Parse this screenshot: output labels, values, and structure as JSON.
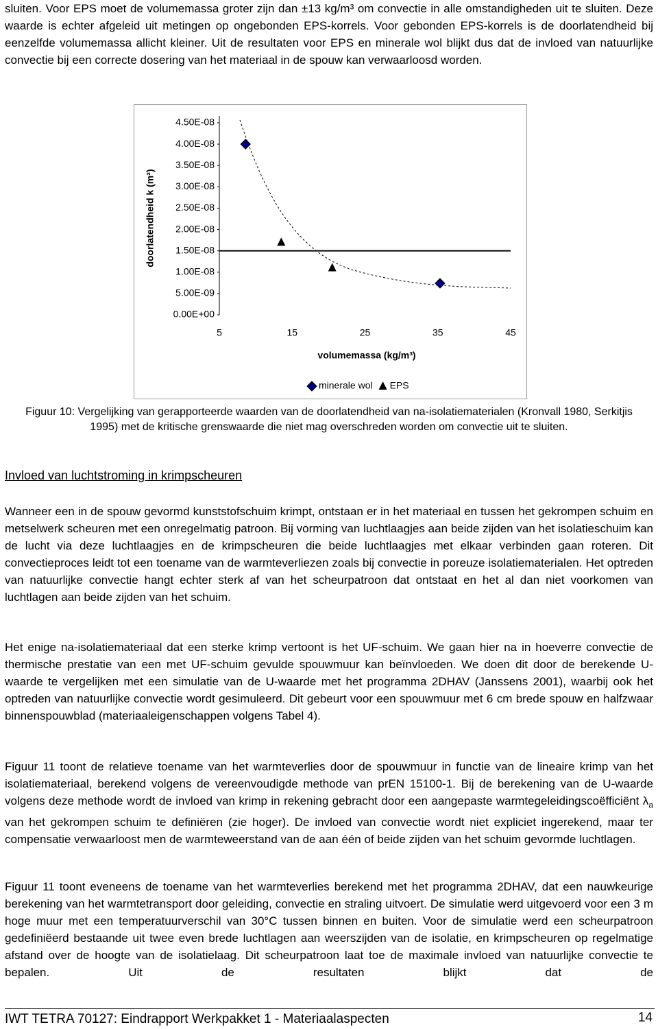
{
  "intro": "sluiten. Voor EPS moet de volumemassa groter zijn dan ±13 kg/m³ om convectie in alle omstandigheden uit te sluiten. Deze waarde is echter afgeleid uit metingen op ongebonden EPS-korrels. Voor gebonden EPS-korrels is de doorlatendheid bij eenzelfde volumemassa allicht kleiner. Uit de resultaten voor EPS en minerale wol blijkt dus dat de invloed van natuurlijke convectie bij een correcte dosering van het materiaal in de spouw kan verwaarloosd worden.",
  "chart_data": {
    "type": "scatter",
    "x_label": "volumemassa (kg/m³)",
    "y_label": "doorlatendheid k (m²)",
    "xlim": [
      5,
      45
    ],
    "xticks": [
      5,
      15,
      25,
      35,
      45
    ],
    "ylim": [
      0,
      4.5e-08
    ],
    "yticks": [
      {
        "value": 0,
        "label": "0.00E+00"
      },
      {
        "value": 5e-09,
        "label": "5.00E-09"
      },
      {
        "value": 1e-08,
        "label": "1.00E-08"
      },
      {
        "value": 1.5e-08,
        "label": "1.50E-08"
      },
      {
        "value": 2e-08,
        "label": "2.00E-08"
      },
      {
        "value": 2.5e-08,
        "label": "2.50E-08"
      },
      {
        "value": 3e-08,
        "label": "3.00E-08"
      },
      {
        "value": 3.5e-08,
        "label": "3.50E-08"
      },
      {
        "value": 4e-08,
        "label": "4.00E-08"
      },
      {
        "value": 4.5e-08,
        "label": "4.50E-08"
      }
    ],
    "series": [
      {
        "name": "minerale wol",
        "color": "#000080",
        "marker": "diamond",
        "x": [
          8.6,
          35.3
        ],
        "values": [
          4e-08,
          7.4e-09
        ]
      },
      {
        "name": "EPS",
        "color": "#000000",
        "marker": "triangle",
        "x": [
          13.5,
          20.5
        ],
        "values": [
          1.7e-08,
          1.1e-08
        ]
      }
    ],
    "threshold": 1.5e-08,
    "legend": "bottom"
  },
  "caption": "Figuur 10: Vergelijking van gerapporteerde waarden van de doorlatendheid van na-isolatiematerialen (Kronvall 1980, Serkitjis 1995) met de kritische grenswaarde die niet mag overschreden worden om convectie uit te sluiten.",
  "heading": "Invloed van luchtstroming in krimpscheuren",
  "paragraphs": [
    "Wanneer een in de spouw gevormd kunststofschuim krimpt, ontstaan er in het materiaal en tussen het gekrompen schuim en metselwerk scheuren met een onregelmatig patroon. Bij vorming van luchtlaagjes aan beide zijden van het isolatieschuim kan de lucht via deze luchtlaagjes en de krimpscheuren die beide luchtlaagjes met elkaar verbinden gaan roteren. Dit convectieproces leidt tot een toename van de warmteverliezen zoals bij convectie in poreuze isolatiematerialen. Het optreden van natuurlijke convectie hangt echter sterk af van het scheurpatroon dat ontstaat en het al dan niet voorkomen van luchtlagen aan beide zijden van het schuim.",
    "Het enige na-isolatiemateriaal dat een sterke krimp vertoont is het UF-schuim. We gaan hier na in hoeverre convectie de thermische prestatie van een met UF-schuim gevulde spouwmuur kan beïnvloeden. We doen dit door de berekende U-waarde te vergelijken met een simulatie van de U-waarde met het programma 2DHAV (Janssens 2001), waarbij ook het optreden van natuurlijke convectie wordt gesimuleerd. Dit gebeurt voor een spouwmuur met 6 cm brede spouw en halfzwaar binnenspouwblad (materiaaleigenschappen volgens Tabel 4)."
  ],
  "paragraph_subscript": {
    "before": "Figuur 11 toont de relatieve toename van het warmteverlies door de spouwmuur in functie van de lineaire krimp van het isolatiemateriaal, berekend volgens de vereenvoudigde methode van prEN 15100-1. Bij de berekening van de U-waarde volgens deze methode wordt de invloed van krimp in rekening gebracht door een aangepaste warmtegeleidingscoëfficiënt λ",
    "subscript": "a",
    "after": " van het gekrompen schuim te definiëren (zie hoger). De invloed van convectie wordt niet expliciet ingerekend, maar ter compensatie verwaarloost men de warmteweerstand van de aan één of beide zijden van het schuim gevormde luchtlagen."
  },
  "last_paragraph": "Figuur 11 toont eveneens de toename van het warmteverlies berekend met het programma 2DHAV, dat een nauwkeurige berekening van het warmtetransport door geleiding, convectie en straling uitvoert. De simulatie werd uitgevoerd voor een 3 m hoge muur met een temperatuurverschil van 30°C tussen binnen en buiten. Voor de simulatie werd een scheurpatroon gedefiniëerd bestaande uit twee even brede luchtlagen aan weerszijden van de isolatie, en krimpscheuren op regelmatige afstand over de hoogte van de isolatielaag. Dit scheurpatroon laat toe de maximale invloed van natuurlijke convectie te bepalen. Uit de resultaten blijkt dat de",
  "footer": {
    "text": "IWT TETRA 70127: Eindrapport Werkpakket 1 - Materiaalaspecten",
    "page": "14"
  }
}
